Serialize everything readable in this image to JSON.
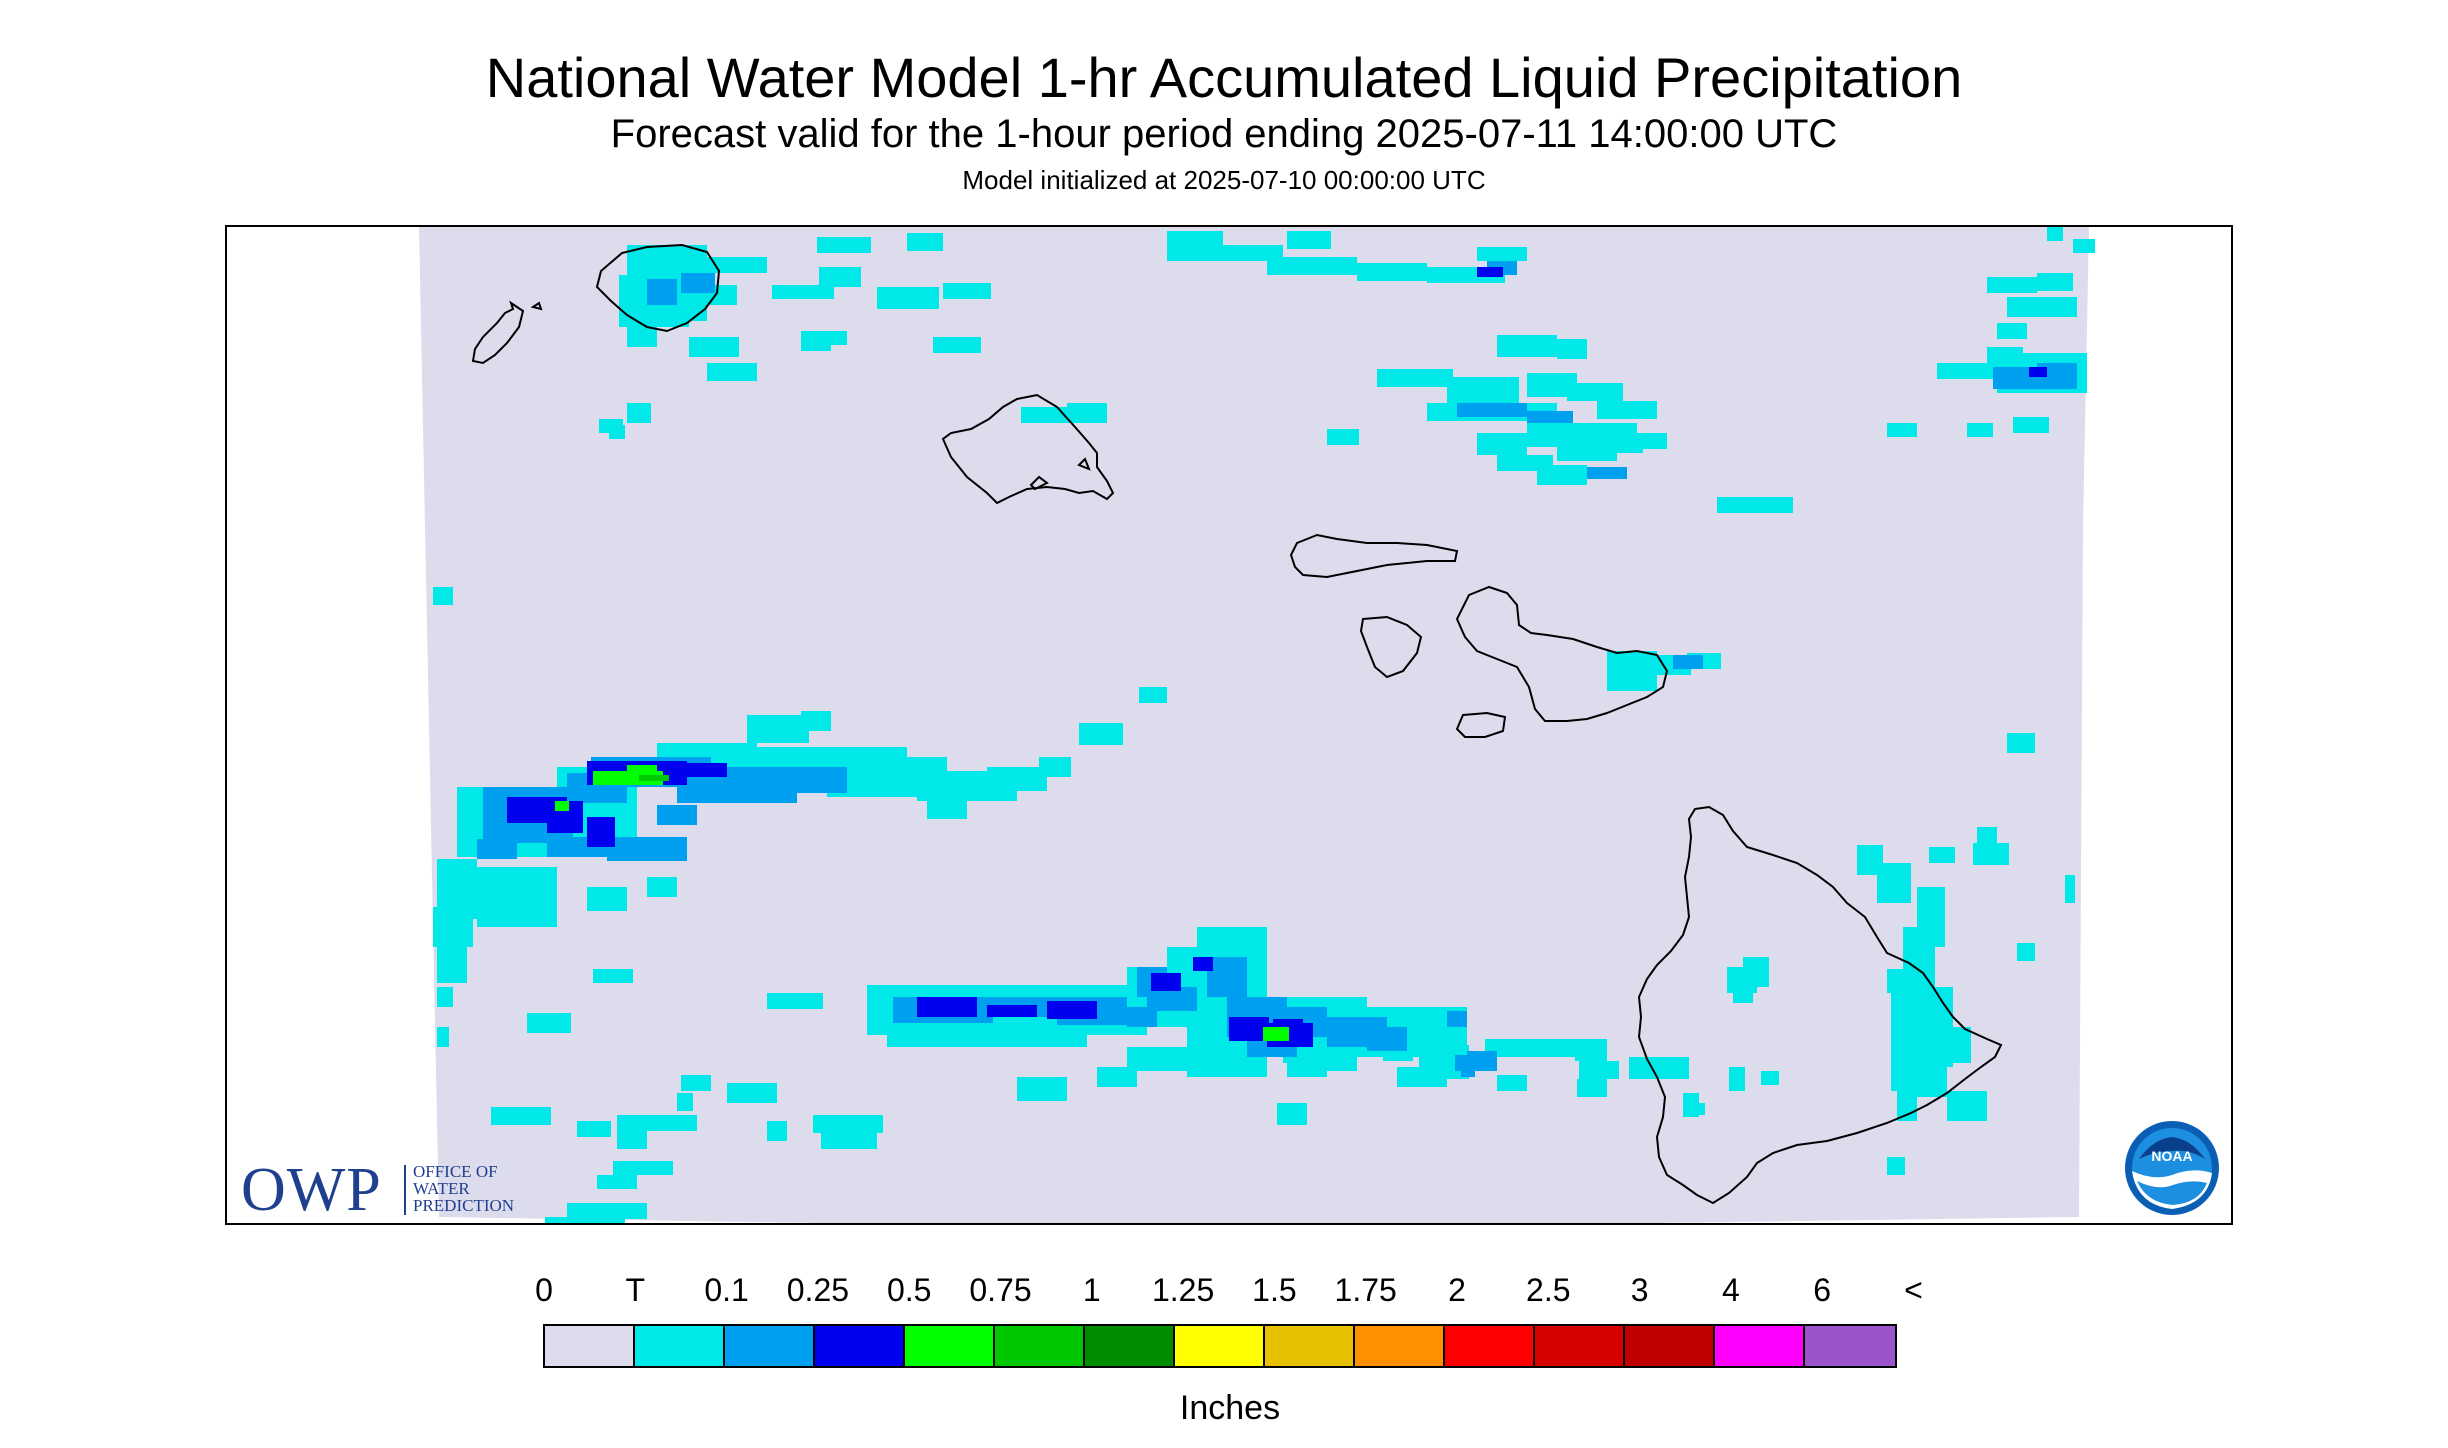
{
  "header": {
    "title": "National Water Model 1-hr Accumulated Liquid Precipitation",
    "subtitle": "Forecast valid for the 1-hour period ending 2025-07-11 14:00:00 UTC",
    "init": "Model initialized at 2025-07-10 00:00:00 UTC"
  },
  "legend": {
    "labels": [
      "0",
      "T",
      "0.1",
      "0.25",
      "0.5",
      "0.75",
      "1",
      "1.25",
      "1.5",
      "1.75",
      "2",
      "2.5",
      "3",
      "4",
      "6",
      "<"
    ],
    "colors": [
      "#dcdcec",
      "#00e8e8",
      "#00a0f0",
      "#0000f0",
      "#00ff00",
      "#00c800",
      "#008c00",
      "#ffff00",
      "#e7c000",
      "#ff9000",
      "#ff0000",
      "#d60000",
      "#c00000",
      "#ff00ff",
      "#9955c9"
    ],
    "units": "Inches"
  },
  "logos": {
    "owp_big": "OWP",
    "owp_line1": "OFFICE OF",
    "owp_line2": "WATER",
    "owp_line3": "PREDICTION",
    "noaa": "NOAA"
  },
  "colors": {
    "background": "#dcdcec",
    "trace": "#00e8e8",
    "light_blue": "#00a0f0",
    "blue": "#0000f0",
    "green": "#00ff00",
    "coast": "#000000"
  }
}
